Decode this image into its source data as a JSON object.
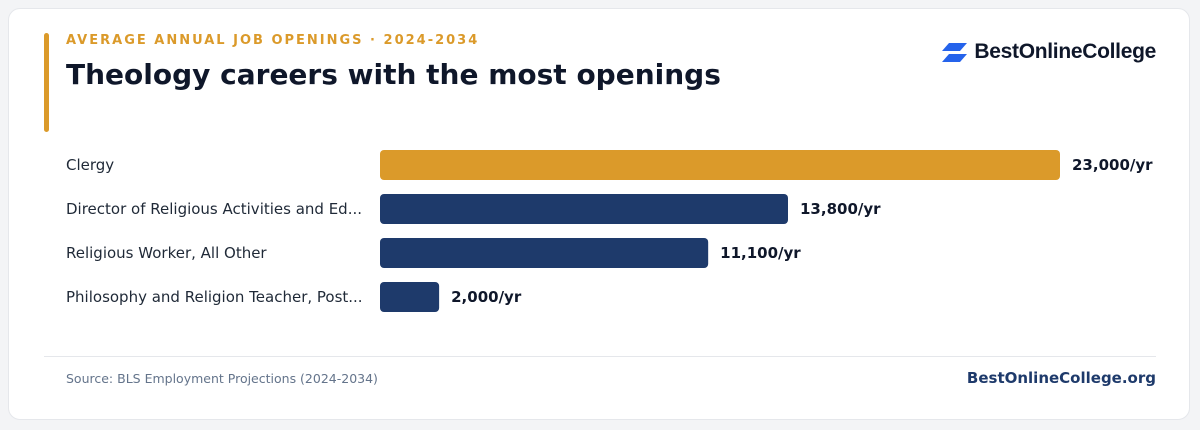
{
  "header": {
    "eyebrow": "AVERAGE ANNUAL JOB OPENINGS · 2024-2034",
    "title": "Theology careers with the most openings"
  },
  "brand": {
    "name": "BestOnlineCollege",
    "logo_icon": "stacked-parallelograms-icon",
    "logo_color": "#2563eb"
  },
  "colors": {
    "highlight": "#db9a2a",
    "primary": "#1e3a6b"
  },
  "chart_data": {
    "type": "bar",
    "orientation": "horizontal",
    "categories": [
      "Clergy",
      "Director of Religious Activities and Ed...",
      "Religious Worker, All Other",
      "Philosophy and Religion Teacher, Post..."
    ],
    "values": [
      23000,
      13800,
      11100,
      2000
    ],
    "value_labels": [
      "23,000/yr",
      "13,800/yr",
      "11,100/yr",
      "2,000/yr"
    ],
    "highlight_index": 0,
    "xlim": [
      0,
      23000
    ],
    "grid": false
  },
  "footer": {
    "source": "Source: BLS Employment Projections (2024-2034)",
    "site": "BestOnlineCollege.org"
  }
}
